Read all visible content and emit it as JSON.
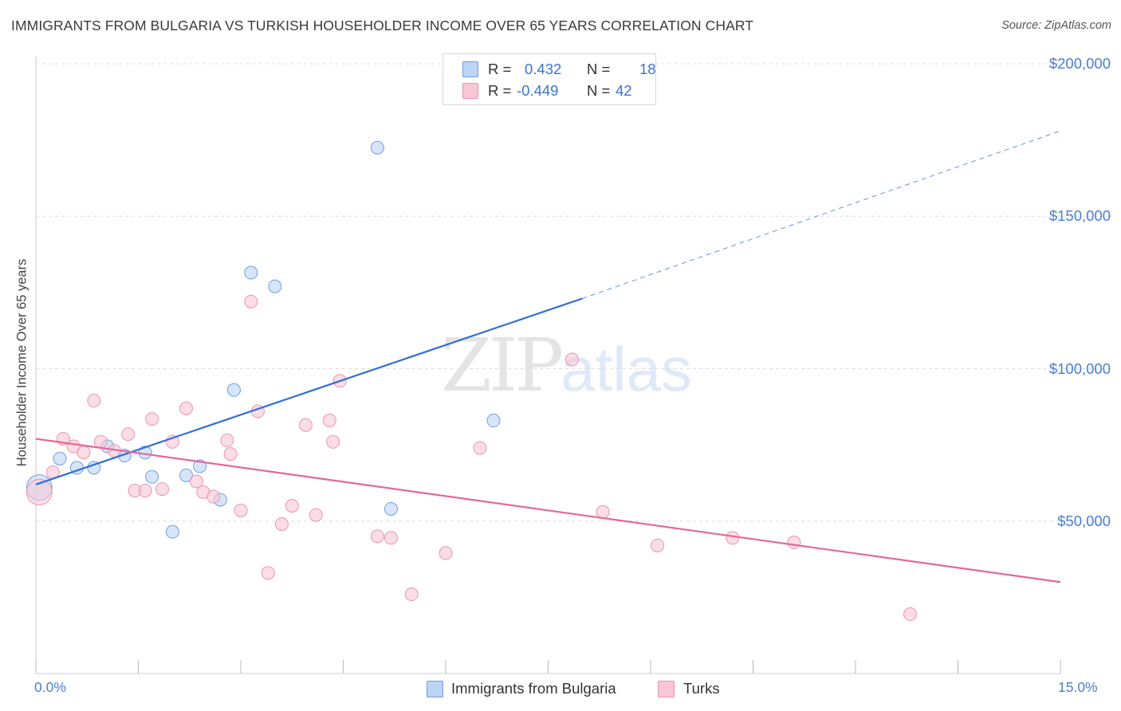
{
  "header": {
    "title": "IMMIGRANTS FROM BULGARIA VS TURKISH HOUSEHOLDER INCOME OVER 65 YEARS CORRELATION CHART",
    "source": "Source: ZipAtlas.com"
  },
  "watermark": {
    "zip": "ZIP",
    "atlas": "atlas"
  },
  "legend": {
    "rows": [
      {
        "r_label": "R =",
        "r_value": "0.432",
        "n_label": "N =",
        "n_value": "18"
      },
      {
        "r_label": "R =",
        "r_value": "-0.449",
        "n_label": "N =",
        "n_value": "42"
      }
    ],
    "bottom": [
      "Immigrants from Bulgaria",
      "Turks"
    ]
  },
  "colors": {
    "blue_fill": "#bcd4f6",
    "blue_stroke": "#6f9ee3",
    "blue_line": "#2f6fd6",
    "pink_fill": "#f9c6d6",
    "pink_stroke": "#ea94b0",
    "pink_line": "#e5679a",
    "tick_label": "#4a7fd0",
    "grid": "#dcdcdc"
  },
  "chart_data": {
    "type": "scatter",
    "title": "IMMIGRANTS FROM BULGARIA VS TURKISH HOUSEHOLDER INCOME OVER 65 YEARS CORRELATION CHART",
    "xlabel": "",
    "ylabel": "Householder Income Over 65 years",
    "x_tick_labels": [
      "0.0%",
      "15.0%"
    ],
    "y_tick_labels": [
      "$50,000",
      "$100,000",
      "$150,000",
      "$200,000"
    ],
    "y_ticks": [
      50000,
      100000,
      150000,
      200000
    ],
    "xlim": [
      0,
      15
    ],
    "ylim": [
      0,
      205000
    ],
    "grid": true,
    "legend_position": "top-center",
    "series": [
      {
        "name": "Immigrants from Bulgaria",
        "r": 0.432,
        "n": 18,
        "points": [
          {
            "x": 0.05,
            "y": 61000,
            "big": true
          },
          {
            "x": 0.35,
            "y": 70500
          },
          {
            "x": 0.6,
            "y": 67500
          },
          {
            "x": 0.85,
            "y": 67500
          },
          {
            "x": 1.05,
            "y": 74500
          },
          {
            "x": 1.3,
            "y": 71500
          },
          {
            "x": 1.6,
            "y": 72500
          },
          {
            "x": 1.7,
            "y": 64500
          },
          {
            "x": 2.0,
            "y": 46500
          },
          {
            "x": 2.2,
            "y": 65000
          },
          {
            "x": 2.4,
            "y": 68000
          },
          {
            "x": 2.7,
            "y": 57000
          },
          {
            "x": 2.9,
            "y": 93000
          },
          {
            "x": 3.15,
            "y": 131500
          },
          {
            "x": 3.5,
            "y": 127000
          },
          {
            "x": 5.0,
            "y": 172500
          },
          {
            "x": 5.2,
            "y": 54000
          },
          {
            "x": 6.7,
            "y": 83000
          }
        ],
        "trend": {
          "x0": 0.0,
          "y0": 62000,
          "x1": 8.0,
          "y1": 123000,
          "dash_x1": 15.0,
          "dash_y1": 178000
        }
      },
      {
        "name": "Turks",
        "r": -0.449,
        "n": 42,
        "points": [
          {
            "x": 0.05,
            "y": 59500,
            "big": true
          },
          {
            "x": 0.25,
            "y": 66000
          },
          {
            "x": 0.4,
            "y": 77000
          },
          {
            "x": 0.55,
            "y": 74500
          },
          {
            "x": 0.7,
            "y": 72500
          },
          {
            "x": 0.85,
            "y": 89500
          },
          {
            "x": 0.95,
            "y": 76000
          },
          {
            "x": 1.15,
            "y": 73000
          },
          {
            "x": 1.35,
            "y": 78500
          },
          {
            "x": 1.45,
            "y": 60000
          },
          {
            "x": 1.6,
            "y": 60000
          },
          {
            "x": 1.7,
            "y": 83500
          },
          {
            "x": 1.85,
            "y": 60500
          },
          {
            "x": 2.0,
            "y": 76000
          },
          {
            "x": 2.2,
            "y": 87000
          },
          {
            "x": 2.35,
            "y": 63000
          },
          {
            "x": 2.45,
            "y": 59500
          },
          {
            "x": 2.6,
            "y": 58000
          },
          {
            "x": 2.8,
            "y": 76500
          },
          {
            "x": 2.85,
            "y": 72000
          },
          {
            "x": 3.0,
            "y": 53500
          },
          {
            "x": 3.15,
            "y": 122000
          },
          {
            "x": 3.25,
            "y": 86000
          },
          {
            "x": 3.4,
            "y": 33000
          },
          {
            "x": 3.6,
            "y": 49000
          },
          {
            "x": 3.75,
            "y": 55000
          },
          {
            "x": 3.95,
            "y": 81500
          },
          {
            "x": 4.1,
            "y": 52000
          },
          {
            "x": 4.3,
            "y": 83000
          },
          {
            "x": 4.35,
            "y": 76000
          },
          {
            "x": 4.45,
            "y": 96000
          },
          {
            "x": 5.0,
            "y": 45000
          },
          {
            "x": 5.2,
            "y": 44500
          },
          {
            "x": 5.5,
            "y": 26000
          },
          {
            "x": 6.0,
            "y": 39500
          },
          {
            "x": 6.5,
            "y": 74000
          },
          {
            "x": 7.85,
            "y": 103000
          },
          {
            "x": 8.3,
            "y": 53000
          },
          {
            "x": 9.1,
            "y": 42000
          },
          {
            "x": 10.2,
            "y": 44500
          },
          {
            "x": 11.1,
            "y": 43000
          },
          {
            "x": 12.8,
            "y": 19500
          }
        ],
        "trend": {
          "x0": 0.0,
          "y0": 77000,
          "x1": 15.0,
          "y1": 30000
        }
      }
    ]
  }
}
